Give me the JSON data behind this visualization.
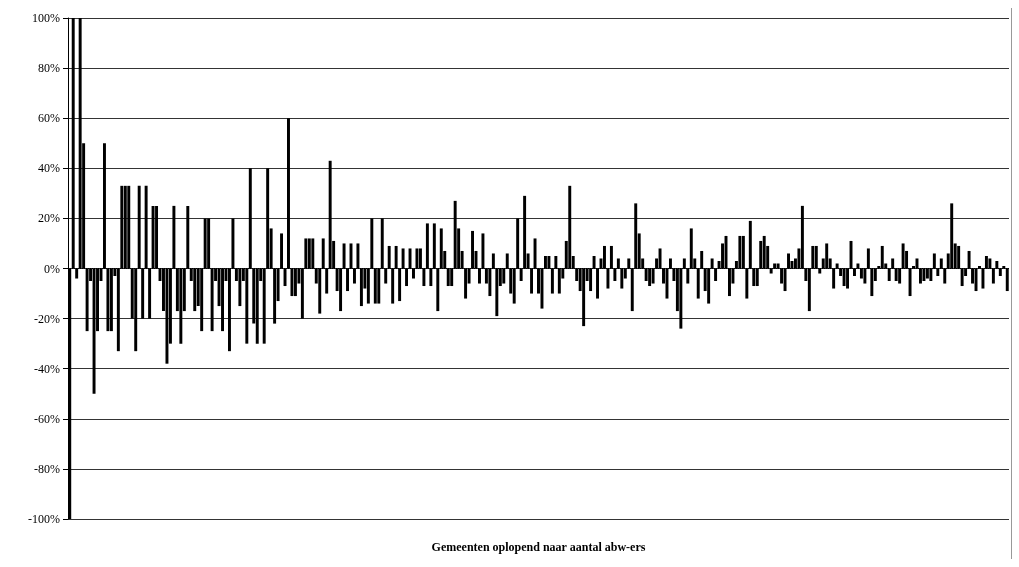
{
  "chart_data": {
    "type": "bar",
    "xlabel": "Gemeenten oplopend naar aantal abw-ers",
    "color": "#000000",
    "categories": [
      null,
      null,
      null,
      null,
      null,
      null,
      null,
      null,
      null,
      null,
      null,
      null,
      null,
      null,
      null,
      null,
      null,
      null,
      null,
      null,
      null,
      null,
      null,
      null,
      null,
      null,
      null,
      null,
      null,
      null,
      null,
      null,
      null,
      null,
      null,
      null,
      null,
      null,
      null,
      null,
      null,
      null,
      null,
      null,
      null,
      null,
      null,
      null,
      null,
      null,
      null,
      null,
      null,
      null,
      null,
      null,
      null,
      null,
      null,
      null,
      null,
      null,
      null,
      null,
      null,
      null,
      null,
      null,
      null,
      null,
      null,
      null,
      null,
      null,
      null,
      null,
      null,
      null,
      null,
      null,
      null,
      null,
      null,
      null,
      null,
      null,
      null,
      null,
      null,
      null,
      null,
      null,
      null,
      null,
      null,
      null,
      null,
      null,
      null,
      null,
      null,
      null,
      null,
      null,
      null,
      null,
      null,
      null,
      null,
      null,
      null,
      null,
      null,
      null,
      null,
      null,
      null,
      null,
      null,
      null,
      null,
      null,
      null,
      null,
      null,
      null,
      null,
      null,
      null,
      null,
      null,
      null,
      null,
      null,
      null,
      null,
      null,
      null,
      null,
      null,
      null,
      null,
      null,
      null,
      null,
      null,
      null,
      null,
      null,
      null,
      null,
      null,
      null,
      null,
      null,
      null,
      null,
      null,
      null,
      null,
      null,
      null,
      null,
      null,
      null,
      null,
      null,
      null,
      null,
      null,
      null,
      null,
      null,
      null,
      null,
      null,
      null,
      null,
      null,
      null,
      null,
      null,
      null,
      null,
      null,
      null,
      null,
      null,
      null,
      null,
      null,
      null,
      null,
      null,
      null,
      null,
      null,
      null,
      null,
      null,
      null,
      null,
      null,
      null,
      null,
      null,
      null,
      null,
      null,
      null,
      null,
      null,
      null,
      null,
      null,
      null,
      null,
      null,
      null,
      null,
      null,
      null,
      null,
      null,
      null,
      null,
      null,
      null,
      null,
      null,
      null,
      null,
      null,
      null,
      null,
      null,
      null,
      null,
      null,
      null,
      null,
      null,
      null,
      null,
      null,
      null,
      null,
      null,
      null,
      null,
      null,
      null,
      null,
      null,
      null,
      null,
      null,
      null,
      null,
      null,
      null,
      null,
      null,
      null,
      null,
      null,
      null,
      null,
      null,
      null,
      null
    ],
    "values": [
      -100,
      100,
      -4,
      100,
      50,
      -25,
      -5,
      -50,
      -25,
      -5,
      50,
      -25,
      -25,
      -3,
      -33,
      33,
      33,
      33,
      -20,
      -33,
      33,
      -20,
      33,
      -20,
      25,
      25,
      -5,
      -17,
      -38,
      -30,
      25,
      -17,
      -30,
      -17,
      25,
      -5,
      -17,
      -15,
      -25,
      20,
      20,
      -25,
      -5,
      -15,
      -25,
      -5,
      -33,
      20,
      -5,
      -15,
      -5,
      -30,
      40,
      -22,
      -30,
      -5,
      -30,
      40,
      16,
      -22,
      -13,
      14,
      -7,
      60,
      -11,
      -11,
      -6,
      -20,
      12,
      12,
      12,
      -6,
      -18,
      12,
      -10,
      43,
      11,
      -9,
      -17,
      10,
      -9,
      10,
      -6,
      10,
      -15,
      -8,
      -14,
      20,
      -14,
      -14,
      20,
      -6,
      9,
      -14,
      9,
      -13,
      8,
      -7,
      8,
      -4,
      8,
      8,
      -7,
      18,
      -7,
      18,
      -17,
      16,
      7,
      -7,
      -7,
      27,
      16,
      7,
      -12,
      -6,
      15,
      7,
      -6,
      14,
      -6,
      -11,
      6,
      -19,
      -7,
      -6,
      6,
      -10,
      -14,
      20,
      -5,
      29,
      6,
      -10,
      12,
      -10,
      -16,
      5,
      5,
      -10,
      5,
      -10,
      -4,
      11,
      33,
      5,
      -5,
      -9,
      -23,
      -5,
      -9,
      5,
      -12,
      4,
      9,
      -8,
      9,
      -5,
      4,
      -8,
      -4,
      4,
      -17,
      26,
      14,
      4,
      -5,
      -7,
      -6,
      4,
      8,
      -6,
      -12,
      4,
      -5,
      -17,
      -24,
      4,
      -6,
      16,
      4,
      -12,
      7,
      -9,
      -14,
      4,
      -5,
      3,
      10,
      13,
      -11,
      -6,
      3,
      13,
      13,
      -12,
      19,
      -7,
      -7,
      11,
      13,
      9,
      -2,
      2,
      2,
      -6,
      -9,
      6,
      3,
      4,
      8,
      25,
      -5,
      -17,
      9,
      9,
      -2,
      4,
      10,
      4,
      -8,
      2,
      -3,
      -7,
      -8,
      11,
      -3,
      2,
      -4,
      -6,
      8,
      -11,
      -5,
      1,
      9,
      2,
      -5,
      4,
      -5,
      -6,
      10,
      7,
      -11,
      1,
      4,
      -6,
      -5,
      -4,
      -5,
      6,
      -3,
      4,
      -6,
      6,
      26,
      10,
      9,
      -7,
      -3,
      7,
      -6,
      -9,
      1,
      -8,
      5,
      4,
      -6,
      3,
      -3,
      1,
      -9
    ],
    "ylim": [
      -100,
      100
    ],
    "yticks": [
      {
        "value": -100,
        "label": "-100%"
      },
      {
        "value": -80,
        "label": "-80%"
      },
      {
        "value": -60,
        "label": "-60%"
      },
      {
        "value": -40,
        "label": "-40%"
      },
      {
        "value": -20,
        "label": "-20%"
      },
      {
        "value": 0,
        "label": "0%"
      },
      {
        "value": 20,
        "label": "20%"
      },
      {
        "value": 40,
        "label": "40%"
      },
      {
        "value": 60,
        "label": "60%"
      },
      {
        "value": 80,
        "label": "80%"
      },
      {
        "value": 100,
        "label": "100%"
      }
    ],
    "grid": "y",
    "ref_lines": [
      {
        "axis": "y",
        "value": 0,
        "line_style": "dotted",
        "color": "#000000"
      }
    ]
  }
}
